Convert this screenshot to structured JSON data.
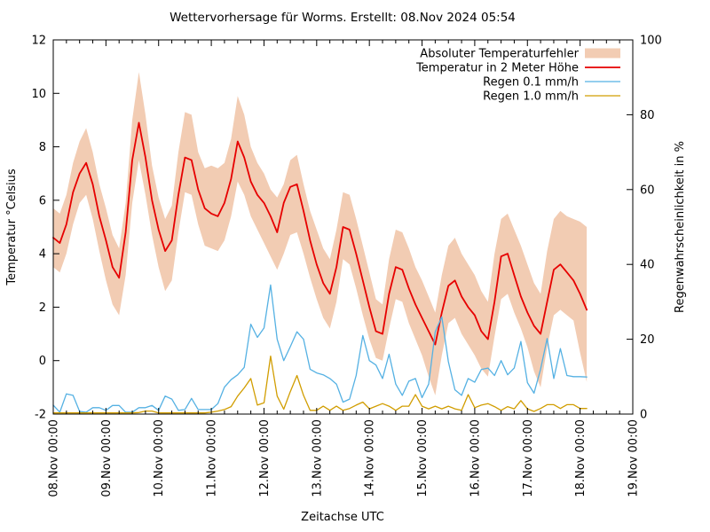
{
  "title": "Wettervorhersage für Worms. Erstellt: 08.Nov 2024 05:54",
  "axes": {
    "x": {
      "label": "Zeitachse UTC",
      "range_days": [
        8,
        19
      ],
      "tick_days": [
        8,
        9,
        10,
        11,
        12,
        13,
        14,
        15,
        16,
        17,
        18,
        19
      ],
      "tick_labels": [
        "08.Nov 00:00",
        "09.Nov 00:00",
        "10.Nov 00:00",
        "11.Nov 00:00",
        "12.Nov 00:00",
        "13.Nov 00:00",
        "14.Nov 00:00",
        "15.Nov 00:00",
        "16.Nov 00:00",
        "17.Nov 00:00",
        "18.Nov 00:00",
        "19.Nov 00:00"
      ],
      "minor_tick_step_days": 0.25
    },
    "y_left": {
      "label": "Temperatur °Celsius",
      "range": [
        -2,
        12
      ],
      "ticks": [
        -2,
        0,
        2,
        4,
        6,
        8,
        10,
        12
      ]
    },
    "y_right": {
      "label": "Regenwahrscheinlichkeit in %",
      "range": [
        0,
        100
      ],
      "ticks": [
        0,
        20,
        40,
        60,
        80,
        100
      ]
    }
  },
  "legend": [
    {
      "label": "Absoluter Temperaturfehler",
      "swatch": "band",
      "color": "#f2ccb3"
    },
    {
      "label": "Temperatur in 2 Meter Höhe",
      "swatch": "line",
      "color": "#e60000"
    },
    {
      "label": "Regen 0.1 mm/h",
      "swatch": "line",
      "color": "#55b1e3"
    },
    {
      "label": "Regen 1.0 mm/h",
      "swatch": "line",
      "color": "#d19d00"
    }
  ],
  "chart_data": {
    "type": "line",
    "title": "Wettervorhersage für Worms. Erstellt: 08.Nov 2024 05:54",
    "xlabel": "Zeitachse UTC",
    "ylabel_left": "Temperatur °Celsius",
    "ylabel_right": "Regenwahrscheinlichkeit in %",
    "xlim_days": [
      8,
      19
    ],
    "ylim_left": [
      -2,
      12
    ],
    "ylim_right": [
      0,
      100
    ],
    "grid": false,
    "legend_position": "top-right-inside",
    "x_days": [
      8,
      8.125,
      8.25,
      8.375,
      8.5,
      8.625,
      8.75,
      8.875,
      9,
      9.125,
      9.25,
      9.375,
      9.5,
      9.625,
      9.75,
      9.875,
      10,
      10.125,
      10.25,
      10.375,
      10.5,
      10.625,
      10.75,
      10.875,
      11,
      11.125,
      11.25,
      11.375,
      11.5,
      11.625,
      11.75,
      11.875,
      12,
      12.125,
      12.25,
      12.375,
      12.5,
      12.625,
      12.75,
      12.875,
      13,
      13.125,
      13.25,
      13.375,
      13.5,
      13.625,
      13.75,
      13.875,
      14,
      14.125,
      14.25,
      14.375,
      14.5,
      14.625,
      14.75,
      14.875,
      15,
      15.125,
      15.25,
      15.375,
      15.5,
      15.625,
      15.75,
      15.875,
      16,
      16.125,
      16.25,
      16.375,
      16.5,
      16.625,
      16.75,
      16.875,
      17,
      17.125,
      17.25,
      17.375,
      17.5,
      17.625,
      17.75,
      17.875,
      18,
      18.125
    ],
    "series": [
      {
        "name": "Absoluter Temperaturfehler",
        "axis": "left",
        "style": "band",
        "color": "#f2ccb3",
        "upper": [
          5.7,
          5.5,
          6.2,
          7.4,
          8.2,
          8.7,
          7.8,
          6.6,
          5.7,
          4.7,
          4.2,
          5.9,
          9.0,
          10.8,
          9.2,
          7.3,
          6.1,
          5.3,
          5.8,
          7.8,
          9.3,
          9.2,
          7.8,
          7.2,
          7.3,
          7.2,
          7.4,
          8.3,
          9.9,
          9.2,
          8.0,
          7.4,
          7.0,
          6.4,
          6.1,
          6.6,
          7.5,
          7.7,
          6.6,
          5.6,
          4.9,
          4.2,
          3.8,
          4.9,
          6.3,
          6.2,
          5.3,
          4.3,
          3.3,
          2.3,
          2.1,
          3.8,
          4.9,
          4.8,
          4.2,
          3.5,
          3.0,
          2.4,
          1.8,
          3.2,
          4.3,
          4.6,
          4.0,
          3.6,
          3.2,
          2.6,
          2.2,
          4.0,
          5.3,
          5.5,
          4.9,
          4.3,
          3.6,
          2.9,
          2.5,
          4.1,
          5.3,
          5.6,
          5.4,
          5.3,
          5.2,
          5.0
        ],
        "lower": [
          3.5,
          3.3,
          4.0,
          5.1,
          5.9,
          6.2,
          5.3,
          4.1,
          3.0,
          2.1,
          1.7,
          3.2,
          5.9,
          7.5,
          6.2,
          4.7,
          3.5,
          2.6,
          3.0,
          4.8,
          6.3,
          6.2,
          5.1,
          4.3,
          4.2,
          4.1,
          4.5,
          5.4,
          6.7,
          6.2,
          5.4,
          4.9,
          4.4,
          3.9,
          3.4,
          4.0,
          4.7,
          4.8,
          4.0,
          3.1,
          2.3,
          1.6,
          1.2,
          2.2,
          3.8,
          3.6,
          2.7,
          1.7,
          0.8,
          0.1,
          0.0,
          1.2,
          2.3,
          2.2,
          1.4,
          0.8,
          0.2,
          -0.6,
          -1.3,
          0.2,
          1.4,
          1.6,
          1.0,
          0.6,
          0.2,
          -0.3,
          -0.6,
          0.9,
          2.3,
          2.5,
          1.8,
          1.2,
          0.5,
          -0.4,
          -1.0,
          0.5,
          1.7,
          1.9,
          1.7,
          1.5,
          0.3,
          -0.8
        ]
      },
      {
        "name": "Temperatur in 2 Meter Höhe",
        "axis": "left",
        "style": "line",
        "color": "#e60000",
        "values": [
          4.6,
          4.4,
          5.1,
          6.3,
          7.0,
          7.4,
          6.6,
          5.4,
          4.5,
          3.5,
          3.1,
          4.8,
          7.5,
          8.9,
          7.6,
          6.0,
          4.9,
          4.1,
          4.5,
          6.2,
          7.6,
          7.5,
          6.4,
          5.7,
          5.5,
          5.4,
          5.9,
          6.8,
          8.2,
          7.6,
          6.7,
          6.2,
          5.9,
          5.4,
          4.8,
          5.9,
          6.5,
          6.6,
          5.6,
          4.5,
          3.6,
          2.9,
          2.5,
          3.5,
          5.0,
          4.9,
          4.0,
          3.0,
          2.0,
          1.1,
          1.0,
          2.5,
          3.5,
          3.4,
          2.7,
          2.1,
          1.6,
          1.1,
          0.6,
          1.8,
          2.8,
          3.0,
          2.4,
          2.0,
          1.7,
          1.1,
          0.8,
          2.2,
          3.9,
          4.0,
          3.2,
          2.4,
          1.8,
          1.3,
          1.0,
          2.2,
          3.4,
          3.6,
          3.3,
          3.0,
          2.5,
          1.9
        ]
      },
      {
        "name": "Regen 0.1 mm/h",
        "axis": "right",
        "style": "line",
        "color": "#55b1e3",
        "values": [
          2.4,
          0.5,
          5.4,
          5.0,
          0.7,
          0.5,
          1.7,
          1.7,
          1.0,
          2.3,
          2.3,
          0.5,
          0.5,
          1.7,
          1.7,
          2.3,
          1.0,
          4.8,
          4.0,
          1.0,
          1.2,
          4.2,
          1.2,
          1.2,
          1.2,
          2.8,
          7.2,
          9.2,
          10.5,
          12.5,
          24.0,
          20.5,
          23.0,
          34.5,
          20.0,
          14.3,
          18.0,
          22.0,
          20.0,
          12.0,
          11.0,
          10.5,
          9.5,
          8.0,
          3.2,
          4.0,
          10.3,
          21.0,
          14.3,
          13.1,
          9.5,
          16.0,
          8.0,
          5.0,
          8.8,
          9.5,
          4.4,
          8.0,
          22.0,
          26.0,
          14.0,
          6.5,
          5.0,
          9.5,
          8.5,
          11.9,
          12.3,
          10.3,
          14.3,
          10.5,
          12.3,
          19.4,
          8.4,
          5.6,
          12.0,
          20.2,
          9.5,
          17.5,
          10.3,
          10.0,
          10.0,
          9.9
        ]
      },
      {
        "name": "Regen 1.0 mm/h",
        "axis": "right",
        "style": "line",
        "color": "#d19d00",
        "values": [
          0.3,
          0.3,
          0.3,
          0.3,
          0.3,
          0.3,
          0.3,
          0.3,
          0.3,
          0.3,
          0.3,
          0.3,
          0.3,
          0.4,
          0.8,
          0.8,
          0.3,
          0.3,
          0.3,
          0.3,
          0.3,
          0.3,
          0.3,
          0.3,
          0.5,
          0.8,
          1.2,
          2.0,
          4.8,
          7.0,
          9.5,
          2.4,
          3.0,
          15.5,
          4.8,
          1.3,
          6.0,
          10.3,
          5.0,
          1.0,
          1.0,
          2.1,
          1.0,
          2.1,
          1.0,
          1.5,
          2.4,
          3.2,
          1.4,
          2.1,
          2.8,
          2.1,
          1.0,
          2.1,
          2.1,
          5.2,
          2.1,
          1.4,
          2.1,
          1.4,
          2.1,
          1.4,
          1.0,
          5.2,
          1.7,
          2.4,
          2.8,
          2.0,
          1.0,
          2.0,
          1.4,
          3.6,
          1.4,
          0.7,
          1.5,
          2.5,
          2.5,
          1.5,
          2.5,
          2.5,
          1.5,
          1.5
        ]
      }
    ]
  }
}
